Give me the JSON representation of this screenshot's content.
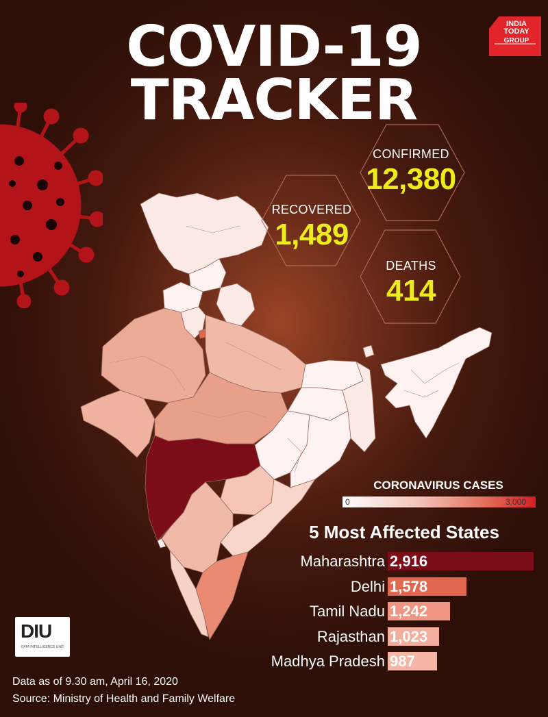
{
  "header": {
    "title_line1": "COVID-19",
    "title_line2": "TRACKER"
  },
  "logo": {
    "line1": "INDIA",
    "line2": "TODAY",
    "line3": "GROUP",
    "color": "#e2252b"
  },
  "stats": {
    "confirmed": {
      "label": "CONFIRMED",
      "value": "12,380"
    },
    "recovered": {
      "label": "RECOVERED",
      "value": "1,489"
    },
    "deaths": {
      "label": "DEATHS",
      "value": "414"
    },
    "value_color": "#ecec1c"
  },
  "map_legend": {
    "title": "CORONAVIRUS CASES",
    "min_label": "0",
    "max_label": "3,000",
    "min": 0,
    "max": 3000
  },
  "chart_data": {
    "type": "bar",
    "title": "5 Most Affected States",
    "categories": [
      "Maharashtra",
      "Delhi",
      "Tamil Nadu",
      "Rajasthan",
      "Madhya Pradesh"
    ],
    "values": [
      2916,
      1578,
      1242,
      1023,
      987
    ],
    "value_labels": [
      "2,916",
      "1,578",
      "1,242",
      "1,023",
      "987"
    ],
    "colors": [
      "#7a0d17",
      "#e2674f",
      "#f09581",
      "#f3ad9c",
      "#f5b6a6"
    ],
    "orientation": "horizontal"
  },
  "branding": {
    "diu_logo_text": "DIU",
    "diu_subtext": "DATA INTELLIGENCE UNIT"
  },
  "footer": {
    "as_of": "Data as of 9.30 am, April 16, 2020",
    "source": "Source: Ministry of Health and Family Welfare"
  }
}
